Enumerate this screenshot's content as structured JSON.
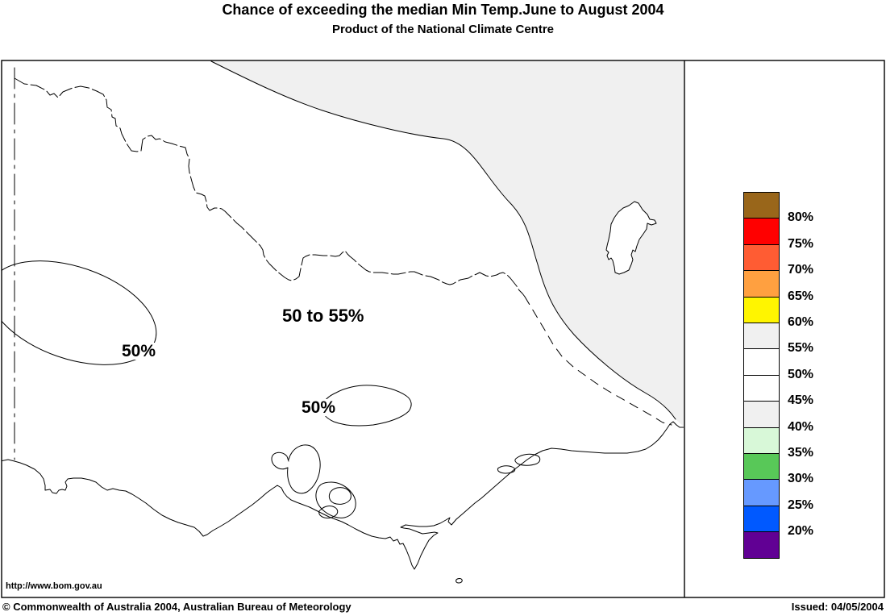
{
  "header": {
    "title": "Chance of exceeding the median Min Temp.June to August 2004",
    "subtitle": "Product of the National Climate Centre"
  },
  "map": {
    "labels": {
      "region_main": "50 to 55%",
      "contour_west": "50%",
      "contour_central": "50%"
    },
    "watermark": "http://www.bom.gov.au",
    "region_fill_color": "#f0f0f0",
    "line_color": "#000000",
    "shaded_region_value": "55 to 60%"
  },
  "legend": {
    "entries": [
      {
        "color": "#99661a",
        "label": "80%"
      },
      {
        "color": "#ff0000",
        "label": "75%"
      },
      {
        "color": "#ff5c33",
        "label": "70%"
      },
      {
        "color": "#ffa040",
        "label": "65%"
      },
      {
        "color": "#fff500",
        "label": "60%"
      },
      {
        "color": "#f0f0f0",
        "label": "55%"
      },
      {
        "color": "#ffffff",
        "label": "50%"
      },
      {
        "color": "#ffffff",
        "label": "45%"
      },
      {
        "color": "#f0f0f0",
        "label": "40%"
      },
      {
        "color": "#d8f8d8",
        "label": "35%"
      },
      {
        "color": "#58c858",
        "label": "30%"
      },
      {
        "color": "#6699ff",
        "label": "25%"
      },
      {
        "color": "#0059ff",
        "label": "20%"
      },
      {
        "color": "#610094",
        "label": ""
      }
    ]
  },
  "footer": {
    "copyright": "© Commonwealth of Australia 2004, Australian Bureau of Meteorology",
    "issued": "Issued: 04/05/2004"
  }
}
